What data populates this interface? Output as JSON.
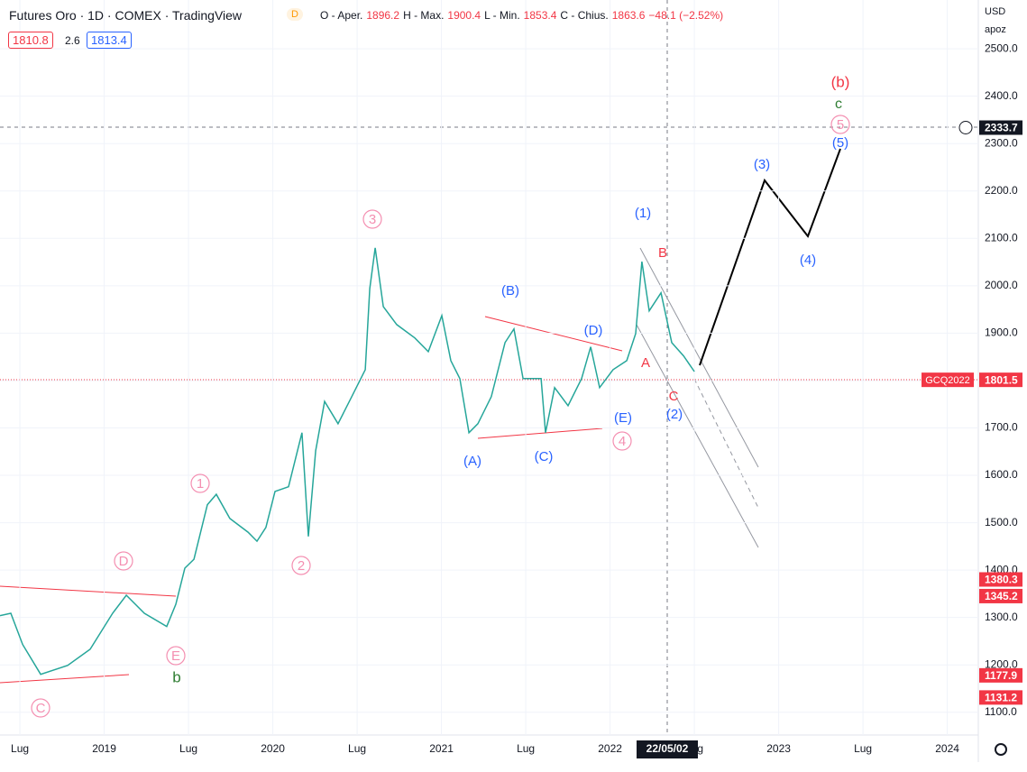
{
  "header": {
    "title": "Futures Oro · 1D · COMEX · TradingView",
    "badge": "D",
    "ohlc": [
      "O - Aper.",
      "1896.2",
      "H - Max.",
      "1900.4",
      "L - Min.",
      "1853.4",
      "C - Chius.",
      "1863.6",
      "−48.1 (−2.52%)"
    ],
    "bid": "1810.8",
    "spread": "2.6",
    "ask": "1813.4",
    "currency": "USD",
    "scale_mode": "apoz"
  },
  "chart_data": {
    "type": "line",
    "color": "#26a69a",
    "x": [
      2018.382,
      2018.446,
      2018.516,
      2018.623,
      2018.783,
      2018.917,
      2019.05,
      2019.131,
      2019.238,
      2019.371,
      2019.425,
      2019.478,
      2019.532,
      2019.612,
      2019.612,
      2019.665,
      2019.745,
      2019.853,
      2019.906,
      2019.959,
      2020.013,
      2020.093,
      2020.173,
      2020.211,
      2020.254,
      2020.307,
      2020.387,
      2020.468,
      2020.548,
      2020.575,
      2020.607,
      2020.655,
      2020.735,
      2020.842,
      2020.922,
      2021.002,
      2021.056,
      2021.109,
      2021.163,
      2021.216,
      2021.296,
      2021.377,
      2021.43,
      2021.484,
      2021.591,
      2021.617,
      2021.671,
      2021.751,
      2021.831,
      2021.885,
      2021.938,
      2022.018,
      2022.099,
      2022.152,
      2022.189,
      2022.232,
      2022.302,
      2022.366,
      2022.436,
      2022.5
    ],
    "values": [
      1304,
      1309,
      1243,
      1180,
      1199,
      1233,
      1309,
      1347,
      1309,
      1281,
      1328,
      1404,
      1423,
      1538,
      1538,
      1560,
      1509,
      1480,
      1461,
      1490,
      1566,
      1576,
      1690,
      1471,
      1652,
      1756,
      1709,
      1766,
      1823,
      1994,
      2080,
      1956,
      1918,
      1890,
      1861,
      1937,
      1842,
      1804,
      1690,
      1709,
      1766,
      1880,
      1909,
      1804,
      1804,
      1690,
      1785,
      1747,
      1804,
      1871,
      1785,
      1823,
      1842,
      1899,
      2051,
      1947,
      1985,
      1880,
      1852,
      1819
    ],
    "xlim": [
      2018.382,
      2024.184
    ],
    "ylim": [
      1052,
      2603
    ],
    "xticks": [
      {
        "value": 2018.5,
        "label": "Lug"
      },
      2019,
      {
        "value": 2019.5,
        "label": "Lug"
      },
      2020,
      {
        "value": 2020.5,
        "label": "Lug"
      },
      2021,
      {
        "value": 2021.5,
        "label": "Lug"
      },
      2022,
      {
        "value": 2022.5,
        "label": "Lug"
      },
      2023,
      {
        "value": 2023.5,
        "label": "Lug"
      },
      2024
    ],
    "yticks": [
      {
        "value": 1100,
        "label": "1100.0"
      },
      {
        "value": 1200,
        "label": "1200.0"
      },
      {
        "value": 1300,
        "label": "1300.0"
      },
      {
        "value": 1400,
        "label": "1400.0"
      },
      {
        "value": 1500,
        "label": "1500.0"
      },
      {
        "value": 1600,
        "label": "1600.0"
      },
      {
        "value": 1700,
        "label": "1700.0"
      },
      {
        "value": 1800,
        "label": "1800.0"
      },
      {
        "value": 1900,
        "label": "1900.0"
      },
      {
        "value": 2000,
        "label": "2000.0"
      },
      {
        "value": 2100,
        "label": "2100.0"
      },
      {
        "value": 2200,
        "label": "2200.0"
      },
      {
        "value": 2300,
        "label": "2300.0"
      },
      {
        "value": 2400,
        "label": "2400.0"
      },
      {
        "value": 2500,
        "label": "2500.0"
      }
    ],
    "crosshair_date": "22/05/02",
    "symbol": "GCQ2022",
    "price_tags": [
      2333.7,
      1801.5,
      1380.3,
      1345.2,
      1177.9,
      1131.2
    ],
    "price_tag_colors": [
      "#131722",
      "#f23645",
      "#f23645",
      "#f23645",
      "#f23645",
      "#f23645"
    ],
    "annotations": [
      "(b)",
      "c",
      "5",
      "(5)",
      "(3)",
      "(4)",
      "(1)",
      "B",
      "A",
      "C",
      "(2)",
      "(D)",
      "(E)",
      "4",
      "(B)",
      "(A)",
      "(C)",
      "3",
      "1",
      "2",
      "D",
      "E",
      "b",
      "C"
    ]
  }
}
